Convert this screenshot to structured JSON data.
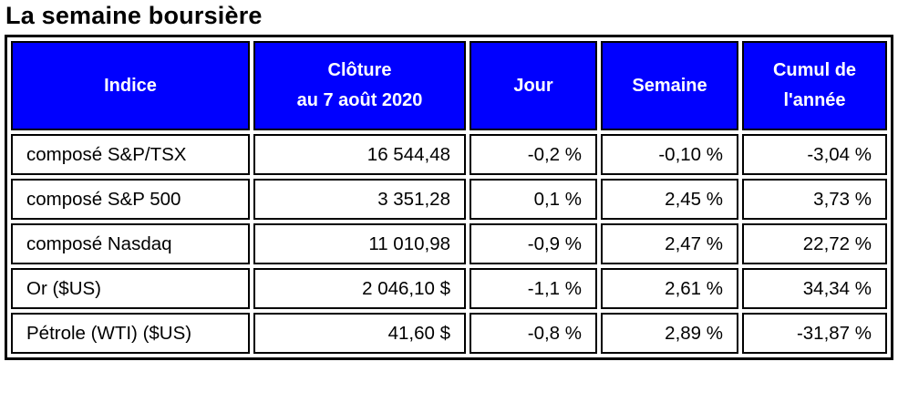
{
  "page_title": "La semaine boursière",
  "colors": {
    "header_bg": "#0000FF",
    "header_text": "#FFFFFF",
    "border": "#000000",
    "text": "#000000",
    "cell_bg": "#FFFFFF"
  },
  "table": {
    "headers": {
      "indice": "Indice",
      "cloture_line1": "Clôture",
      "cloture_line2": "au 7 août 2020",
      "jour": "Jour",
      "semaine": "Semaine",
      "cumul_line1": "Cumul de",
      "cumul_line2": "l'année"
    },
    "rows": [
      {
        "indice": "composé S&P/TSX",
        "cloture": "16 544,48",
        "jour": "-0,2 %",
        "semaine": "-0,10 %",
        "cumul": "-3,04 %"
      },
      {
        "indice": "composé S&P 500",
        "cloture": "3 351,28",
        "jour": "0,1 %",
        "semaine": "2,45 %",
        "cumul": "3,73 %"
      },
      {
        "indice": "composé Nasdaq",
        "cloture": "11 010,98",
        "jour": "-0,9 %",
        "semaine": "2,47 %",
        "cumul": "22,72 %"
      },
      {
        "indice": "Or ($US)",
        "cloture": "2 046,10 $",
        "jour": "-1,1 %",
        "semaine": "2,61 %",
        "cumul": "34,34 %"
      },
      {
        "indice": "Pétrole (WTI) ($US)",
        "cloture": "41,60 $",
        "jour": "-0,8 %",
        "semaine": "2,89 %",
        "cumul": "-31,87 %"
      }
    ]
  }
}
